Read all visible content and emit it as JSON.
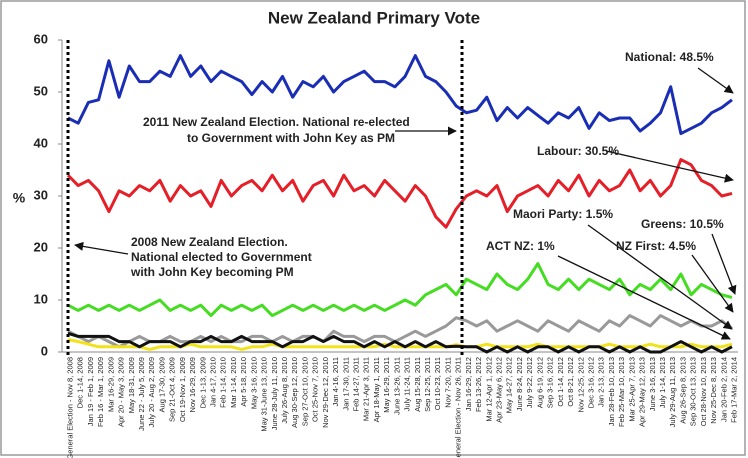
{
  "chart_data": {
    "type": "line",
    "title": "New Zealand Primary Vote",
    "y_label": "%",
    "categories": [
      "General Election - Nov 8, 2008",
      "Dec 1-14, 2008",
      "Jan 19 - Feb 1, 2009",
      "Feb 16 - Mar 1, 2009",
      "Mar 16-29, 2009",
      "Apr 20 - May 3, 2009",
      "May 18-31, 2009",
      "June 22 - July 5, 2009",
      "July 20 - Aug 2, 2009",
      "Aug 17-30, 2009",
      "Sep 21-Oct 4, 2009",
      "Oct 19-Nov 1, 2009",
      "Nov 16-29, 2009",
      "Dec 1-13, 2009",
      "Jan 4-17, 2010",
      "Feb 1-14, 2010",
      "Mar 1-14, 2010",
      "Apr 5-18, 2010",
      "May 3-16, 2010",
      "May 31-June 13, 2010",
      "June 28-July 11, 2010",
      "July 26-Aug 8, 2010",
      "Aug 30-Sep 12, 2010",
      "Sep 27-Oct 10, 2010",
      "Oct 25-Nov 7, 2010",
      "Nov 29-Dec 12, 2010",
      "Jan 4-16, 2011",
      "Jan 17-30, 2011",
      "Feb 14-27, 2011",
      "Mar 21-Apr 3, 2011",
      "Apr 18-May 1, 2011",
      "May 16-29, 2011",
      "June 13-26, 2011",
      "July 11-24, 2011",
      "Aug 15-28, 2011",
      "Sep 12-25, 2011",
      "Oct 10-23, 2011",
      "Nov 7-20, 2011",
      "General Election - Nov 26, 2011",
      "Jan 16-29, 2012",
      "Feb 13-26, 2012",
      "Mar 12-Apr 1, 2012",
      "Apr 23-May 6, 2012",
      "May 14-27, 2012",
      "June 8-24, 2012",
      "July 9-22, 2012",
      "Aug 6-19, 2012",
      "Sep 3-16, 2012",
      "Oct 1-14, 2012",
      "Oct 8-21, 2012",
      "Nov 12-25, 2012",
      "Dec 3-16, 2012",
      "Jan 2-13, 2013",
      "Jan 28-Feb 10, 2013",
      "Feb 25-Mar 10, 2013",
      "Mar 25-Apr 7, 2013",
      "Apr 29-May 12, 2013",
      "June 3-16, 2013",
      "July 1-14, 2013",
      "July 29-Aug 11, 2013",
      "Aug 26-Sep 8, 2013",
      "Sep 30-Oct 13, 2013",
      "Oct 28-Nov 10, 2013",
      "Nov 25-Dec 8, 2013",
      "Jan 20-Feb 2, 2014",
      "Feb 17-Mar 2, 2014"
    ],
    "series": [
      {
        "color": "#1a2db5",
        "values": [
          45,
          44,
          48,
          48.5,
          56,
          49,
          55,
          52,
          52,
          54,
          53,
          57,
          53,
          55,
          52,
          54,
          53,
          52,
          49.5,
          52,
          50,
          53,
          49,
          52,
          51,
          53,
          50,
          52,
          53,
          54,
          52,
          52,
          51,
          53,
          57,
          53,
          52,
          50,
          47.3,
          46,
          46.5,
          49,
          44.5,
          47,
          45,
          47,
          45.5,
          44,
          46,
          45,
          47,
          43,
          46,
          44.5,
          45,
          45,
          42.5,
          44,
          46,
          51,
          42,
          43,
          44,
          46,
          47,
          48.5
        ]
      },
      {
        "color": "#e61e28",
        "values": [
          34,
          32,
          33,
          31,
          27,
          31,
          30,
          32,
          31,
          33,
          29,
          32,
          30,
          31,
          28,
          33,
          30,
          32,
          33,
          31,
          34,
          31,
          33,
          29,
          32,
          33,
          30,
          34,
          31,
          32,
          30,
          33,
          31,
          29,
          32,
          30,
          26,
          24,
          27.5,
          30,
          31,
          30,
          32,
          27,
          30,
          31,
          32,
          30,
          33,
          31,
          34,
          30,
          33,
          31,
          32,
          35,
          31,
          33,
          30,
          32,
          37,
          36,
          33,
          32,
          30,
          30.5
        ]
      },
      {
        "color": "#44dd22",
        "values": [
          9,
          8,
          9,
          8,
          9,
          8,
          9,
          8,
          9,
          10,
          8,
          9,
          8,
          9,
          7,
          9,
          8,
          9,
          8,
          9,
          7,
          8,
          9,
          8,
          9,
          8,
          9,
          8,
          9,
          8,
          9,
          8,
          9,
          10,
          9,
          11,
          12,
          13,
          11,
          14,
          13,
          12,
          15,
          13,
          12,
          14,
          17,
          13,
          12,
          14,
          12,
          14,
          13,
          12,
          14,
          11,
          13,
          12,
          14,
          12,
          15,
          11,
          13,
          12,
          11,
          10.5
        ]
      },
      {
        "color": "#999999",
        "values": [
          4,
          3,
          2,
          3,
          2,
          1,
          2,
          3,
          2,
          2,
          3,
          2,
          2,
          3,
          2,
          3,
          2,
          2,
          3,
          3,
          2,
          3,
          2,
          3,
          3,
          2,
          4,
          3,
          3,
          2,
          3,
          3,
          2,
          3,
          4,
          3,
          4,
          5,
          6.6,
          6,
          5,
          6,
          4,
          5,
          6,
          5,
          4,
          6,
          5,
          4,
          6,
          5,
          4,
          6,
          5,
          7,
          6,
          5,
          7,
          6,
          5,
          6,
          5,
          5,
          6,
          4.5
        ]
      },
      {
        "color": "#f2e21a",
        "values": [
          2.4,
          2,
          1.5,
          1,
          1,
          1,
          1,
          1,
          0.5,
          1,
          1,
          1,
          1.5,
          1,
          1,
          1,
          1,
          0.5,
          1,
          1,
          1.5,
          1,
          1,
          1,
          1,
          1,
          1,
          1,
          1,
          1,
          1,
          1.5,
          1,
          1,
          1,
          1,
          1,
          1,
          1.4,
          1,
          1,
          1.5,
          1,
          1,
          1,
          1,
          1.5,
          1,
          1,
          1,
          1,
          1,
          1,
          1.5,
          1,
          1,
          1,
          1.5,
          1,
          1,
          1,
          1.5,
          1,
          1,
          1,
          1.5
        ]
      },
      {
        "color": "#111111",
        "values": [
          3.6,
          3,
          3,
          3,
          3,
          2,
          2,
          1,
          2,
          2,
          2,
          1,
          2,
          2,
          3,
          2,
          2,
          3,
          2,
          2,
          2,
          1,
          2,
          2,
          3,
          2,
          3,
          2,
          2,
          1,
          2,
          1,
          2,
          1,
          2,
          1,
          2,
          1,
          1.1,
          1,
          1,
          0,
          1,
          0,
          1,
          0,
          1,
          1,
          0,
          1,
          0,
          1,
          1,
          0,
          1,
          0,
          1,
          0,
          0,
          1,
          2,
          1,
          0,
          1,
          0,
          1
        ]
      }
    ],
    "ylim": [
      0,
      60
    ],
    "yticks": [
      0,
      10,
      20,
      30,
      40,
      50,
      60
    ],
    "annotations": [
      {
        "text": "National: 48.5%"
      },
      {
        "text": "Labour: 30.5%"
      },
      {
        "text": "Greens: 10.5%"
      },
      {
        "text": "NZ First: 4.5%"
      },
      {
        "text": "Maori Party: 1.5%"
      },
      {
        "text": "ACT NZ: 1%"
      },
      {
        "lines": [
          "2011 New Zealand Election. National re-elected",
          "to Government with John Key as PM"
        ]
      },
      {
        "lines": [
          "2008 New Zealand Election.",
          "National elected to Government",
          "with John Key becoming PM"
        ]
      }
    ]
  }
}
